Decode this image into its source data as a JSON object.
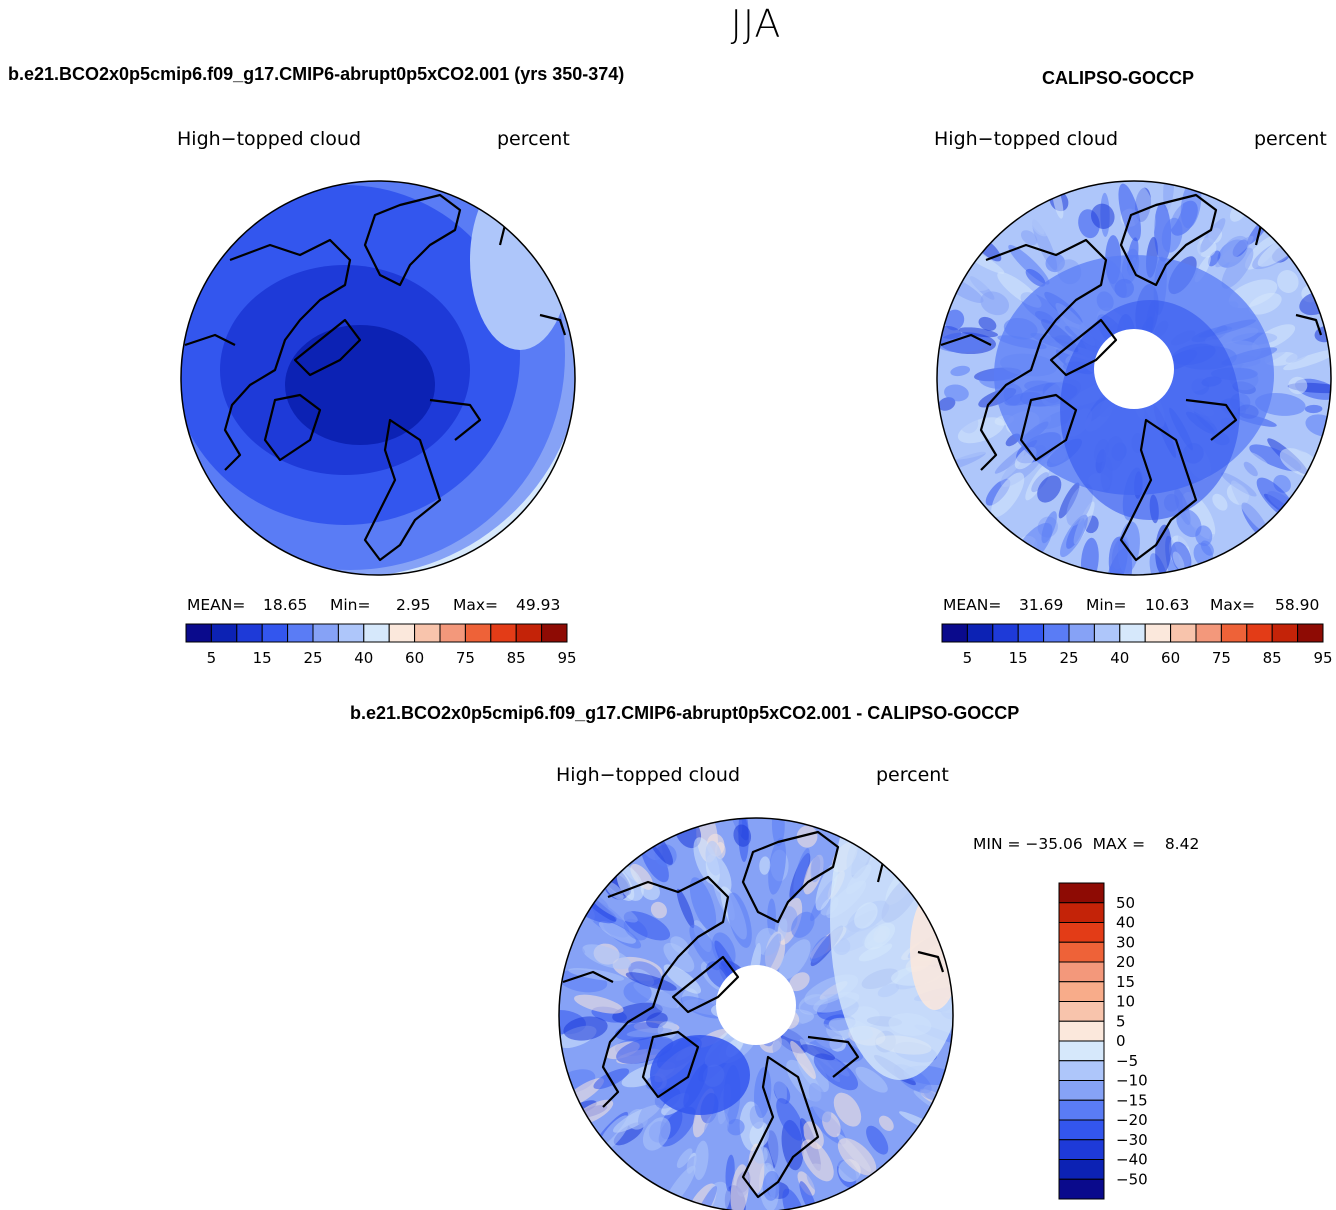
{
  "figure": {
    "season": "JJA"
  },
  "panels": [
    {
      "title": "b.e21.BCO2x0p5cmip6.f09_g17.CMIP6-abrupt0p5xCO2.001 (yrs 350-374)",
      "variable": "High−topped cloud",
      "units": "percent",
      "mean_label": "MEAN=",
      "mean": "18.65",
      "min_label": "Min=",
      "min": "2.95",
      "max_label": "Max=",
      "max": "49.93"
    },
    {
      "title": "CALIPSO-GOCCP",
      "variable": "High−topped cloud",
      "units": "percent",
      "mean_label": "MEAN=",
      "mean": "31.69",
      "min_label": "Min=",
      "min": "10.63",
      "max_label": "Max=",
      "max": "58.90"
    },
    {
      "title": "b.e21.BCO2x0p5cmip6.f09_g17.CMIP6-abrupt0p5xCO2.001 - CALIPSO-GOCCP",
      "variable": "High−topped cloud",
      "units": "percent",
      "minmax_text": "MIN = −35.06  MAX =    8.42"
    }
  ],
  "chart_data": [
    {
      "type": "heatmap",
      "projection": "north polar stereographic",
      "title": "b.e21.BCO2x0p5cmip6.f09_g17.CMIP6-abrupt0p5xCO2.001 (yrs 350-374)",
      "variable": "High-topped cloud",
      "units": "percent",
      "stats": {
        "mean": 18.65,
        "min": 2.95,
        "max": 49.93
      },
      "colorbar_levels": [
        5,
        10,
        15,
        20,
        25,
        30,
        40,
        50,
        60,
        70,
        75,
        80,
        85,
        90,
        95
      ],
      "colorbar_tick_labels": [
        "5",
        "15",
        "25",
        "40",
        "60",
        "75",
        "85",
        "95"
      ],
      "colorbar_colors": [
        "#0a0a8c",
        "#0c22b4",
        "#1e3ad8",
        "#3356ee",
        "#5a7cf5",
        "#86a2f6",
        "#aec6fa",
        "#d6e8fb",
        "#fbe8dc",
        "#f8c4ac",
        "#f3987b",
        "#ee6238",
        "#e33c17",
        "#c42308",
        "#8e0b04"
      ],
      "field_colors": [
        "#0c22b4",
        "#1e3ad8",
        "#3356ee",
        "#5a7cf5",
        "#86a2f6",
        "#d6e8fb"
      ]
    },
    {
      "type": "heatmap",
      "projection": "north polar stereographic",
      "title": "CALIPSO-GOCCP",
      "variable": "High-topped cloud",
      "units": "percent",
      "stats": {
        "mean": 31.69,
        "min": 10.63,
        "max": 58.9
      },
      "colorbar_levels": [
        5,
        10,
        15,
        20,
        25,
        30,
        40,
        50,
        60,
        70,
        75,
        80,
        85,
        90,
        95
      ],
      "colorbar_tick_labels": [
        "5",
        "15",
        "25",
        "40",
        "60",
        "75",
        "85",
        "95"
      ],
      "colorbar_colors": [
        "#0a0a8c",
        "#0c22b4",
        "#1e3ad8",
        "#3356ee",
        "#5a7cf5",
        "#86a2f6",
        "#aec6fa",
        "#d6e8fb",
        "#fbe8dc",
        "#f8c4ac",
        "#f3987b",
        "#ee6238",
        "#e33c17",
        "#c42308",
        "#8e0b04"
      ],
      "field_colors": [
        "#1e3ad8",
        "#3356ee",
        "#5a7cf5",
        "#86a2f6",
        "#aec6fa",
        "#d6e8fb"
      ],
      "missing_region": "polar cap (white)"
    },
    {
      "type": "heatmap",
      "projection": "north polar stereographic",
      "title": "b.e21.BCO2x0p5cmip6.f09_g17.CMIP6-abrupt0p5xCO2.001 - CALIPSO-GOCCP",
      "variable": "High-topped cloud",
      "units": "percent",
      "stats": {
        "min": -35.06,
        "max": 8.42
      },
      "colorbar_labels_top_to_bottom": [
        "50",
        "40",
        "30",
        "20",
        "15",
        "10",
        "5",
        "0",
        "−5",
        "−10",
        "−15",
        "−20",
        "−30",
        "−40",
        "−50"
      ],
      "colorbar_colors_top_to_bottom": [
        "#8e0b04",
        "#c42308",
        "#e33c17",
        "#ee6238",
        "#f3987b",
        "#f8ac8a",
        "#f8c4ac",
        "#fbe8dc",
        "#d6e8fb",
        "#aec6fa",
        "#86a2f6",
        "#5a7cf5",
        "#3356ee",
        "#1e3ad8",
        "#0c22b4",
        "#0a0a8c"
      ],
      "field_colors": [
        "#1e3ad8",
        "#3356ee",
        "#5a7cf5",
        "#86a2f6",
        "#aec6fa",
        "#d6e8fb",
        "#fbe8dc"
      ],
      "missing_region": "polar cap (white)"
    }
  ]
}
